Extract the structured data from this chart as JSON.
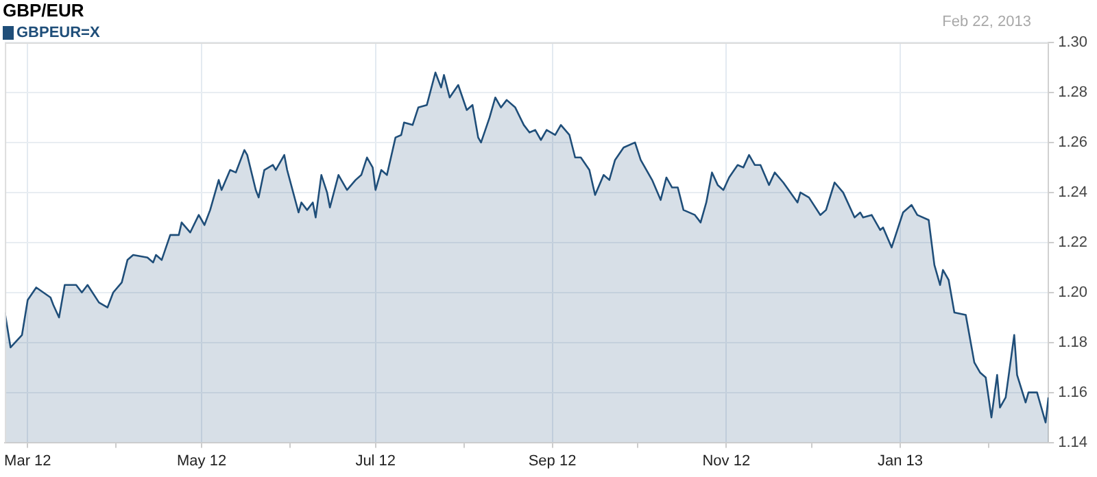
{
  "chart_data": {
    "type": "area",
    "title": "GBP/EUR",
    "legend": "top left",
    "annotations": [
      "Feb 22, 2013"
    ],
    "x": [
      "2012-02-22",
      "2012-02-24",
      "2012-02-28",
      "2012-03-01",
      "2012-03-04",
      "2012-03-09",
      "2012-03-10",
      "2012-03-12",
      "2012-03-14",
      "2012-03-18",
      "2012-03-20",
      "2012-03-22",
      "2012-03-26",
      "2012-03-29",
      "2012-03-31",
      "2012-04-03",
      "2012-04-05",
      "2012-04-07",
      "2012-04-12",
      "2012-04-14",
      "2012-04-15",
      "2012-04-17",
      "2012-04-20",
      "2012-04-23",
      "2012-04-24",
      "2012-04-27",
      "2012-04-30",
      "2012-05-02",
      "2012-05-04",
      "2012-05-07",
      "2012-05-08",
      "2012-05-11",
      "2012-05-13",
      "2012-05-16",
      "2012-05-17",
      "2012-05-20",
      "2012-05-21",
      "2012-05-23",
      "2012-05-26",
      "2012-05-27",
      "2012-05-30",
      "2012-05-31",
      "2012-06-04",
      "2012-06-05",
      "2012-06-07",
      "2012-06-09",
      "2012-06-10",
      "2012-06-12",
      "2012-06-14",
      "2012-06-15",
      "2012-06-18",
      "2012-06-21",
      "2012-06-24",
      "2012-06-26",
      "2012-06-28",
      "2012-06-30",
      "2012-07-01",
      "2012-07-03",
      "2012-07-05",
      "2012-07-08",
      "2012-07-10",
      "2012-07-11",
      "2012-07-14",
      "2012-07-16",
      "2012-07-19",
      "2012-07-22",
      "2012-07-24",
      "2012-07-25",
      "2012-07-27",
      "2012-07-30",
      "2012-08-02",
      "2012-08-04",
      "2012-08-06",
      "2012-08-07",
      "2012-08-10",
      "2012-08-12",
      "2012-08-14",
      "2012-08-16",
      "2012-08-19",
      "2012-08-22",
      "2012-08-24",
      "2012-08-26",
      "2012-08-28",
      "2012-08-30",
      "2012-09-02",
      "2012-09-04",
      "2012-09-07",
      "2012-09-09",
      "2012-09-11",
      "2012-09-14",
      "2012-09-16",
      "2012-09-19",
      "2012-09-21",
      "2012-09-23",
      "2012-09-26",
      "2012-09-30",
      "2012-10-02",
      "2012-10-06",
      "2012-10-09",
      "2012-10-11",
      "2012-10-13",
      "2012-10-15",
      "2012-10-17",
      "2012-10-21",
      "2012-10-23",
      "2012-10-25",
      "2012-10-27",
      "2012-10-29",
      "2012-10-31",
      "2012-11-02",
      "2012-11-05",
      "2012-11-07",
      "2012-11-09",
      "2012-11-11",
      "2012-11-13",
      "2012-11-16",
      "2012-11-18",
      "2012-11-21",
      "2012-11-26",
      "2012-11-27",
      "2012-11-30",
      "2012-12-04",
      "2012-12-06",
      "2012-12-09",
      "2012-12-12",
      "2012-12-16",
      "2012-12-18",
      "2012-12-19",
      "2012-12-22",
      "2012-12-25",
      "2012-12-26",
      "2012-12-29",
      "2013-01-02",
      "2013-01-05",
      "2013-01-07",
      "2013-01-11",
      "2013-01-13",
      "2013-01-15",
      "2013-01-16",
      "2013-01-18",
      "2013-01-20",
      "2013-01-24",
      "2013-01-27",
      "2013-01-29",
      "2013-01-31",
      "2013-02-02",
      "2013-02-04",
      "2013-02-05",
      "2013-02-07",
      "2013-02-10",
      "2013-02-11",
      "2013-02-14",
      "2013-02-15",
      "2013-02-18",
      "2013-02-19",
      "2013-02-21",
      "2013-02-22"
    ],
    "series": [
      {
        "name": "GBPEUR=X",
        "color": "#1f4e79",
        "values": [
          1.192,
          1.178,
          1.183,
          1.197,
          1.202,
          1.198,
          1.195,
          1.19,
          1.203,
          1.203,
          1.2,
          1.203,
          1.196,
          1.194,
          1.2,
          1.204,
          1.213,
          1.215,
          1.214,
          1.212,
          1.215,
          1.213,
          1.223,
          1.223,
          1.228,
          1.224,
          1.231,
          1.227,
          1.233,
          1.245,
          1.241,
          1.249,
          1.248,
          1.257,
          1.255,
          1.241,
          1.238,
          1.249,
          1.251,
          1.249,
          1.255,
          1.249,
          1.232,
          1.236,
          1.233,
          1.236,
          1.23,
          1.247,
          1.24,
          1.234,
          1.247,
          1.241,
          1.245,
          1.247,
          1.254,
          1.25,
          1.241,
          1.249,
          1.247,
          1.262,
          1.263,
          1.268,
          1.267,
          1.274,
          1.275,
          1.288,
          1.282,
          1.287,
          1.278,
          1.283,
          1.273,
          1.275,
          1.262,
          1.26,
          1.27,
          1.278,
          1.274,
          1.277,
          1.274,
          1.267,
          1.264,
          1.265,
          1.261,
          1.265,
          1.263,
          1.267,
          1.263,
          1.254,
          1.254,
          1.249,
          1.239,
          1.247,
          1.245,
          1.253,
          1.258,
          1.26,
          1.253,
          1.245,
          1.237,
          1.246,
          1.242,
          1.242,
          1.233,
          1.231,
          1.228,
          1.236,
          1.248,
          1.243,
          1.241,
          1.246,
          1.251,
          1.25,
          1.255,
          1.251,
          1.251,
          1.243,
          1.248,
          1.244,
          1.236,
          1.24,
          1.238,
          1.231,
          1.233,
          1.244,
          1.24,
          1.23,
          1.232,
          1.23,
          1.231,
          1.225,
          1.226,
          1.218,
          1.232,
          1.235,
          1.231,
          1.229,
          1.211,
          1.203,
          1.209,
          1.205,
          1.192,
          1.191,
          1.172,
          1.168,
          1.166,
          1.15,
          1.167,
          1.154,
          1.158,
          1.183,
          1.167,
          1.156,
          1.16,
          1.16,
          1.156,
          1.148,
          1.158
        ]
      }
    ],
    "xlim": [
      "2012-02-22",
      "2013-02-22"
    ],
    "xticks": [
      {
        "value": "2012-03-01",
        "label": "Mar 12"
      },
      {
        "value": "2012-04-01",
        "label": null
      },
      {
        "value": "2012-05-01",
        "label": "May 12"
      },
      {
        "value": "2012-06-01",
        "label": null
      },
      {
        "value": "2012-07-01",
        "label": "Jul 12"
      },
      {
        "value": "2012-08-01",
        "label": null
      },
      {
        "value": "2012-09-01",
        "label": "Sep 12"
      },
      {
        "value": "2012-10-01",
        "label": null
      },
      {
        "value": "2012-11-01",
        "label": "Nov 12"
      },
      {
        "value": "2012-12-01",
        "label": null
      },
      {
        "value": "2013-01-01",
        "label": "Jan 13"
      },
      {
        "value": "2013-02-01",
        "label": null
      }
    ],
    "ylim": [
      1.14,
      1.3
    ],
    "yticks": [
      1.14,
      1.16,
      1.18,
      {
        "value": 1.2,
        "label": "1.20"
      },
      1.22,
      1.24,
      1.26,
      1.28,
      {
        "value": 1.3,
        "label": "1.30"
      }
    ],
    "grid": true
  }
}
